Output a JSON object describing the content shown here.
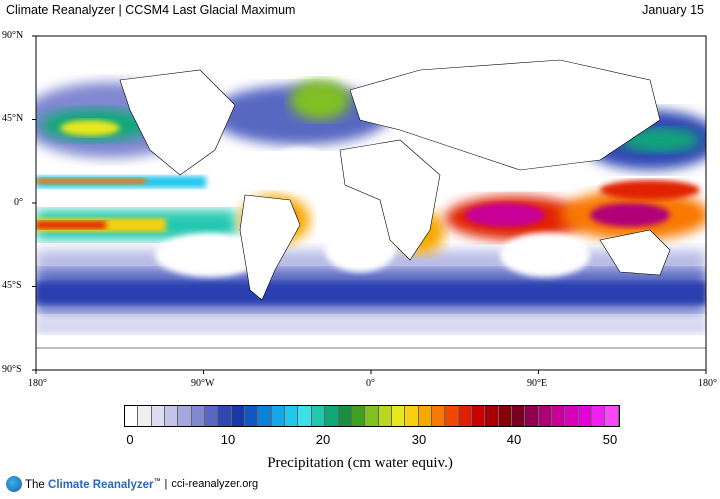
{
  "header": {
    "title": "Climate Reanalyzer | CCSM4 Last Glacial Maximum",
    "date": "January 15"
  },
  "map": {
    "lat_labels": [
      "90°N",
      "45°N",
      "0°",
      "45°S",
      "90°S"
    ],
    "lon_labels": [
      "180°",
      "90°W",
      "0°",
      "90°E",
      "180°"
    ],
    "colors": {
      "land_fill": "#ffffff",
      "ocean_dry": "#ffffff",
      "coast": "#000000"
    }
  },
  "colorbar": {
    "colors": [
      "#ffffff",
      "#f0f0f0",
      "#dcdcf2",
      "#c4c4ea",
      "#a4a8de",
      "#8088d0",
      "#5868c2",
      "#3048b4",
      "#1838a8",
      "#1058c0",
      "#0a80d6",
      "#14a8e6",
      "#20c8ee",
      "#3ce0e8",
      "#20c8b0",
      "#10a878",
      "#189040",
      "#40a020",
      "#80c020",
      "#b8d820",
      "#e8e81c",
      "#f8d010",
      "#f8a800",
      "#f87800",
      "#f04800",
      "#e02000",
      "#c80000",
      "#a80000",
      "#880008",
      "#780020",
      "#900050",
      "#b00078",
      "#c80098",
      "#d800b8",
      "#e800d8",
      "#f020f0",
      "#f848f8"
    ],
    "ticks": [
      "0",
      "10",
      "20",
      "30",
      "40",
      "50"
    ],
    "label": "Precipitation (cm water equiv.)"
  },
  "footer": {
    "brand_prefix": "The ",
    "brand_name": "Climate Reanalyzer",
    "trademark": "™",
    "separator": "|",
    "url": "cci-reanalyzer.org"
  }
}
